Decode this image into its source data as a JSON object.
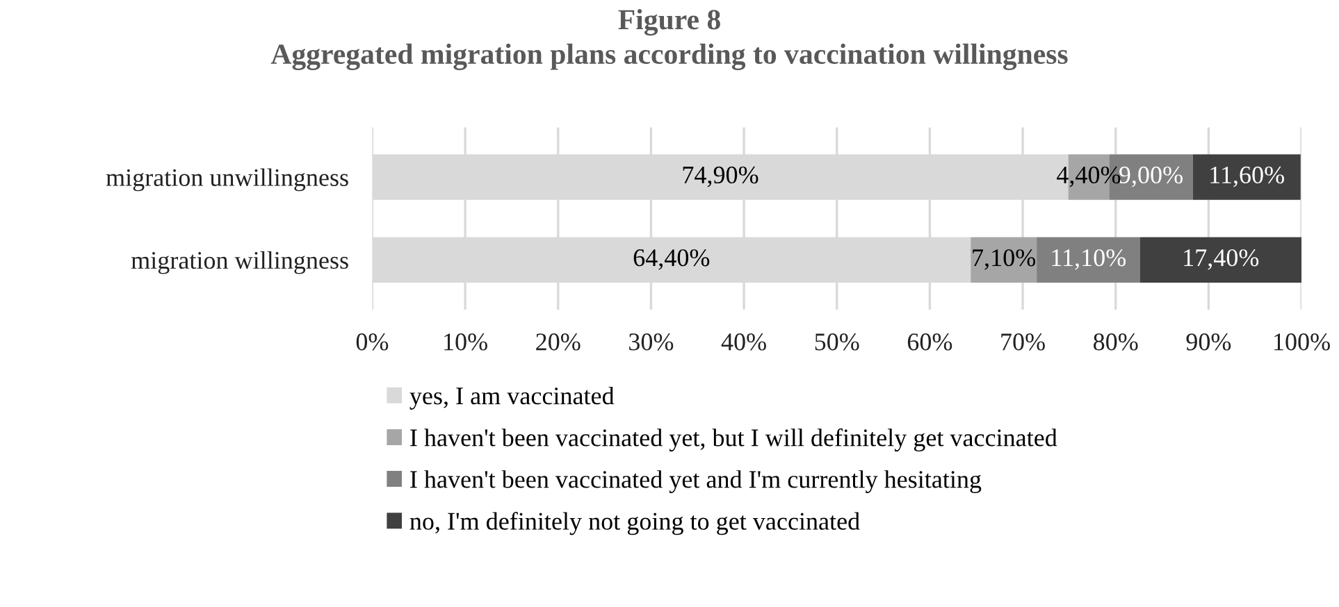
{
  "chart_data": {
    "type": "bar",
    "orientation": "horizontal",
    "stacked": true,
    "title": "Figure 8\nAggregated migration plans according to vaccination willingness",
    "categories": [
      "migration unwillingness",
      "migration willingness"
    ],
    "series": [
      {
        "name": "yes, I am vaccinated",
        "color": "#d9d9d9",
        "values": [
          74.9,
          64.4
        ],
        "value_labels": [
          "74,90%",
          "64,40%"
        ]
      },
      {
        "name": "I haven't been vaccinated yet, but I will definitely get vaccinated",
        "color": "#a6a6a6",
        "values": [
          4.4,
          7.1
        ],
        "value_labels": [
          "4,40%",
          "7,10%"
        ]
      },
      {
        "name": "I haven't been vaccinated yet and I'm currently hesitating",
        "color": "#808080",
        "values": [
          9.0,
          11.1
        ],
        "value_labels": [
          "9,00%",
          "11,10%"
        ]
      },
      {
        "name": "no, I'm definitely not going to get vaccinated",
        "color": "#404040",
        "values": [
          11.6,
          17.4
        ],
        "value_labels": [
          "11,60%",
          "17,40%"
        ]
      }
    ],
    "xlim": [
      0,
      100
    ],
    "xticks": [
      {
        "value": 0,
        "label": "0%"
      },
      {
        "value": 10,
        "label": "10%"
      },
      {
        "value": 20,
        "label": "20%"
      },
      {
        "value": 30,
        "label": "30%"
      },
      {
        "value": 40,
        "label": "40%"
      },
      {
        "value": 50,
        "label": "50%"
      },
      {
        "value": 60,
        "label": "60%"
      },
      {
        "value": 70,
        "label": "70%"
      },
      {
        "value": 80,
        "label": "80%"
      },
      {
        "value": 90,
        "label": "90%"
      },
      {
        "value": 100,
        "label": "100%"
      }
    ],
    "grid": "x",
    "legend": "bottom"
  }
}
